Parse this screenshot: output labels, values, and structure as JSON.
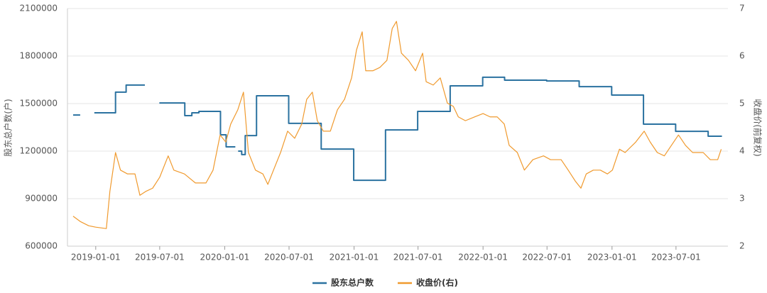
{
  "chart_data": {
    "type": "line",
    "y_label": "股东总户数(户)",
    "y2_label": "收盘价(前复权)",
    "xlim": [
      "2018-10-13",
      "2023-11-25"
    ],
    "xticks": [
      "2019-01-01",
      "2019-07-01",
      "2020-01-01",
      "2020-07-01",
      "2021-01-01",
      "2021-07-01",
      "2022-01-01",
      "2022-07-01",
      "2023-01-01",
      "2023-07-01"
    ],
    "ylim": [
      600000,
      2100000
    ],
    "yticks": [
      600000,
      900000,
      1200000,
      1500000,
      1800000,
      2100000
    ],
    "y2lim": [
      2,
      7
    ],
    "y2ticks": [
      2,
      3,
      4,
      5,
      6,
      7
    ],
    "grid": true,
    "legend": "bottom",
    "series": [
      {
        "name": "股东总户数",
        "color": "#2b72a0",
        "step": true,
        "x": [
          "2018-10-29",
          "2018-11-18",
          null,
          "2018-12-28",
          "2019-02-26",
          "2019-03-28",
          "2019-05-20",
          null,
          "2019-06-30",
          "2019-09-10",
          "2019-09-30",
          "2019-10-20",
          "2019-12-20",
          "2020-01-05",
          "2020-01-31",
          null,
          "2020-02-08",
          "2020-02-18",
          "2020-02-28",
          "2020-03-31",
          "2020-06-30",
          "2020-09-30",
          "2020-12-31",
          "2021-03-31",
          "2021-06-30",
          "2021-09-30",
          "2021-12-31",
          "2022-03-03",
          "2022-06-30",
          "2022-09-30",
          "2022-12-31",
          "2023-03-31",
          "2023-06-30",
          "2023-09-30",
          "2023-11-08"
        ],
        "values": [
          1428000,
          1428000,
          null,
          1442000,
          1572000,
          1617000,
          1617000,
          null,
          1504000,
          1424000,
          1442000,
          1451000,
          1303000,
          1227000,
          1227000,
          null,
          1200000,
          1178000,
          1298000,
          1549000,
          1375000,
          1213000,
          1016000,
          1334000,
          1451000,
          1612000,
          1666000,
          1648000,
          1643000,
          1607000,
          1554000,
          1370000,
          1325000,
          1294000,
          1294000
        ]
      },
      {
        "name": "收盘价(右)",
        "color": "#f09a2e",
        "axis": "y2",
        "x": [
          "2018-10-29",
          "2018-11-18",
          "2018-12-12",
          "2019-01-01",
          "2019-01-31",
          "2019-02-10",
          "2019-02-26",
          "2019-03-12",
          "2019-04-01",
          "2019-04-22",
          "2019-05-06",
          "2019-05-22",
          "2019-06-11",
          "2019-07-01",
          "2019-07-25",
          "2019-08-10",
          "2019-09-09",
          "2019-10-10",
          "2019-11-09",
          "2019-11-29",
          "2019-12-19",
          "2020-01-04",
          "2020-01-18",
          "2020-02-07",
          "2020-02-23",
          "2020-03-08",
          "2020-03-28",
          "2020-04-18",
          "2020-05-02",
          "2020-05-18",
          "2020-06-07",
          "2020-06-27",
          "2020-07-17",
          "2020-08-06",
          "2020-08-20",
          "2020-09-05",
          "2020-09-19",
          "2020-10-06",
          "2020-10-26",
          "2020-11-15",
          "2020-12-05",
          "2020-12-25",
          "2021-01-08",
          "2021-01-24",
          "2021-02-03",
          "2021-02-23",
          "2021-03-15",
          "2021-04-04",
          "2021-04-19",
          "2021-05-01",
          "2021-05-15",
          "2021-06-04",
          "2021-06-24",
          "2021-07-14",
          "2021-07-24",
          "2021-08-13",
          "2021-09-02",
          "2021-09-22",
          "2021-10-09",
          "2021-10-23",
          "2021-11-12",
          "2021-12-08",
          "2022-01-01",
          "2022-01-21",
          "2022-02-10",
          "2022-03-02",
          "2022-03-16",
          "2022-04-08",
          "2022-04-28",
          "2022-05-22",
          "2022-06-21",
          "2022-07-11",
          "2022-08-10",
          "2022-08-30",
          "2022-09-19",
          "2022-10-05",
          "2022-10-20",
          "2022-11-09",
          "2022-11-29",
          "2022-12-19",
          "2023-01-02",
          "2023-01-22",
          "2023-02-07",
          "2023-03-09",
          "2023-04-02",
          "2023-04-19",
          "2023-05-09",
          "2023-05-29",
          "2023-06-18",
          "2023-07-08",
          "2023-07-28",
          "2023-08-17",
          "2023-09-16",
          "2023-10-06",
          "2023-10-27",
          "2023-11-06"
        ],
        "values": [
          2.63,
          2.52,
          2.43,
          2.4,
          2.37,
          3.15,
          3.97,
          3.6,
          3.52,
          3.52,
          3.07,
          3.15,
          3.22,
          3.45,
          3.9,
          3.6,
          3.52,
          3.33,
          3.33,
          3.6,
          4.34,
          4.19,
          4.57,
          4.87,
          5.24,
          3.97,
          3.6,
          3.52,
          3.3,
          3.6,
          3.97,
          4.42,
          4.27,
          4.57,
          5.09,
          5.24,
          4.64,
          4.42,
          4.42,
          4.87,
          5.09,
          5.54,
          6.13,
          6.51,
          5.69,
          5.69,
          5.76,
          5.91,
          6.58,
          6.73,
          6.06,
          5.91,
          5.69,
          6.06,
          5.46,
          5.39,
          5.54,
          5.01,
          4.94,
          4.72,
          4.64,
          4.72,
          4.79,
          4.72,
          4.72,
          4.57,
          4.12,
          3.97,
          3.6,
          3.82,
          3.9,
          3.82,
          3.82,
          3.6,
          3.37,
          3.22,
          3.52,
          3.6,
          3.6,
          3.52,
          3.6,
          4.04,
          3.97,
          4.19,
          4.42,
          4.19,
          3.97,
          3.9,
          4.12,
          4.34,
          4.12,
          3.97,
          3.97,
          3.82,
          3.82,
          4.04
        ]
      }
    ]
  }
}
